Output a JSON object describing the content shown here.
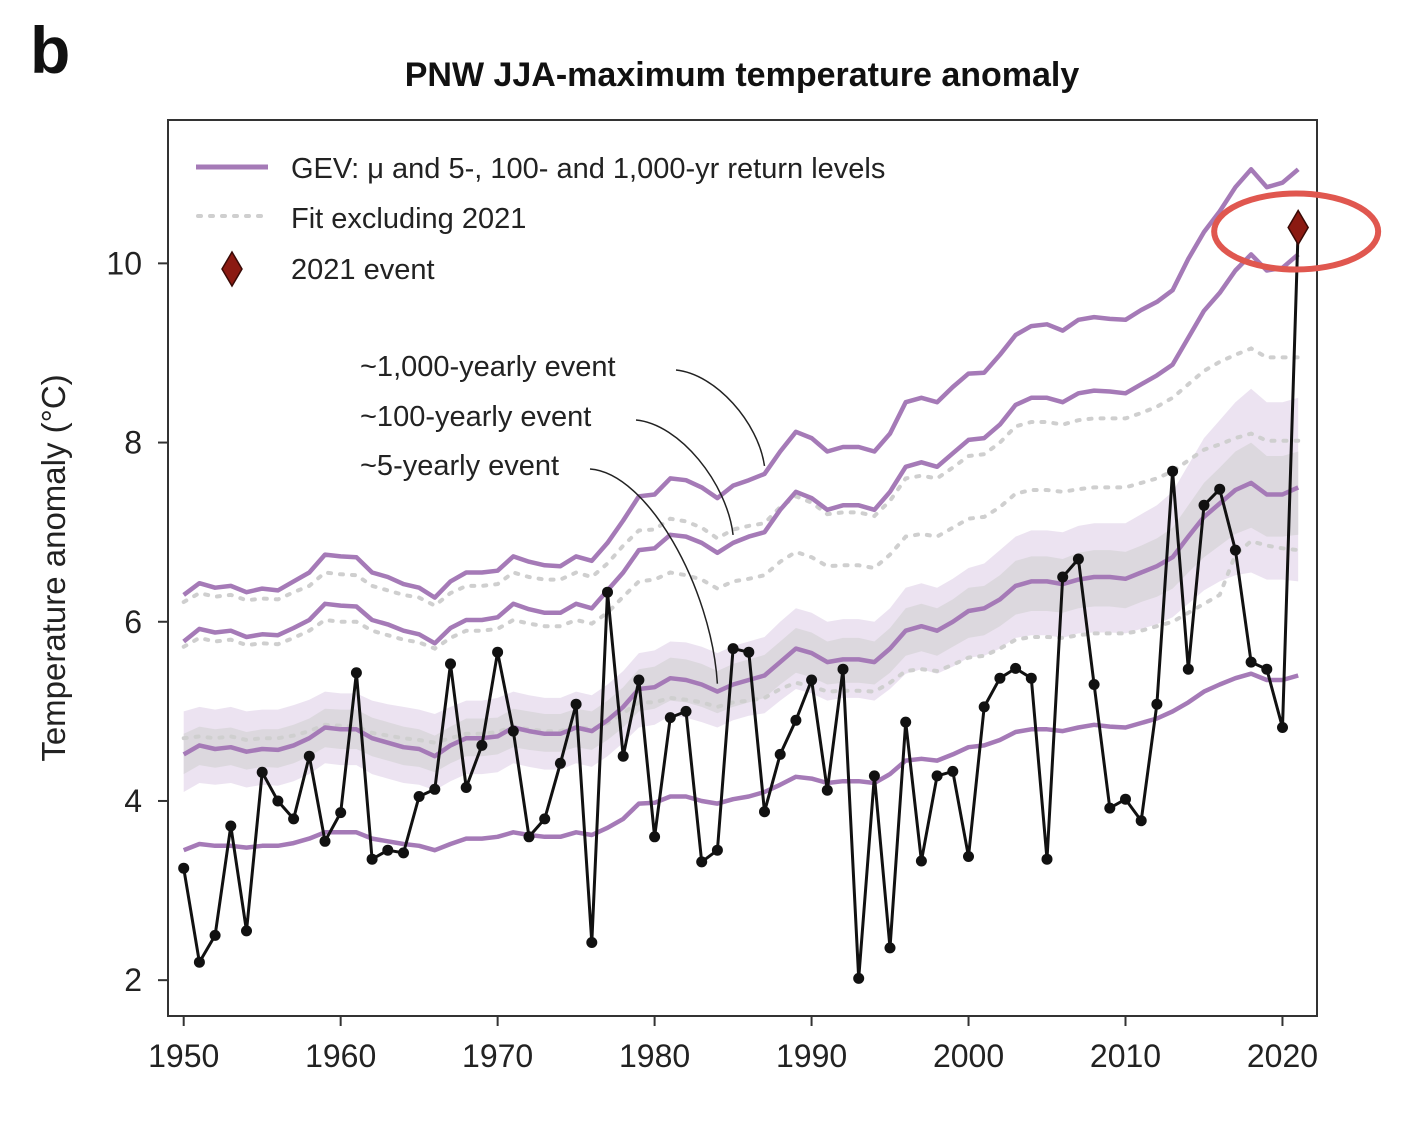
{
  "panel_label": "b",
  "colors": {
    "gev": "#a57ab7",
    "fit": "#cfcfcf",
    "obs": "#111111",
    "event": "#8b1a12",
    "highlight": "#e0574f",
    "band_purple": "#e6d9ec",
    "band_gray": "#d9d6db"
  },
  "chart_data": {
    "type": "line",
    "title": "PNW JJA-maximum temperature anomaly",
    "xlabel": "",
    "ylabel": "Temperature anomaly (°C)",
    "xlim": [
      1949,
      2022.2
    ],
    "ylim": [
      1.6,
      11.6
    ],
    "xticks": [
      1950,
      1960,
      1970,
      1980,
      1990,
      2000,
      2010,
      2020
    ],
    "yticks": [
      2,
      4,
      6,
      8,
      10
    ],
    "legend": {
      "position": "top-left",
      "entries": [
        {
          "label": "GEV: μ and 5-, 100- and 1,000-yr return levels",
          "style": "gev-line"
        },
        {
          "label": "Fit excluding 2021",
          "style": "dotted"
        },
        {
          "label": "2021 event",
          "style": "diamond"
        }
      ]
    },
    "annotations": [
      {
        "text": "~1,000-yearly event",
        "target_series": "GEV 1000-yr",
        "target_year": 1987
      },
      {
        "text": "~100-yearly event",
        "target_series": "GEV 100-yr",
        "target_year": 1985
      },
      {
        "text": "~5-yearly event",
        "target_series": "GEV 5-yr",
        "target_year": 1984
      }
    ],
    "years": [
      1950,
      1951,
      1952,
      1953,
      1954,
      1955,
      1956,
      1957,
      1958,
      1959,
      1960,
      1961,
      1962,
      1963,
      1964,
      1965,
      1966,
      1967,
      1968,
      1969,
      1970,
      1971,
      1972,
      1973,
      1974,
      1975,
      1976,
      1977,
      1978,
      1979,
      1980,
      1981,
      1982,
      1983,
      1984,
      1985,
      1986,
      1987,
      1988,
      1989,
      1990,
      1991,
      1992,
      1993,
      1994,
      1995,
      1996,
      1997,
      1998,
      1999,
      2000,
      2001,
      2002,
      2003,
      2004,
      2005,
      2006,
      2007,
      2008,
      2009,
      2010,
      2011,
      2012,
      2013,
      2014,
      2015,
      2016,
      2017,
      2018,
      2019,
      2020,
      2021
    ],
    "observed": {
      "name": "Observed",
      "values": [
        3.25,
        2.2,
        2.5,
        3.72,
        2.55,
        4.32,
        4.0,
        3.8,
        4.5,
        3.55,
        3.87,
        5.43,
        3.35,
        3.45,
        3.42,
        4.05,
        4.13,
        5.53,
        4.15,
        4.62,
        5.66,
        4.78,
        3.6,
        3.8,
        4.42,
        5.08,
        2.42,
        6.33,
        4.5,
        5.35,
        3.6,
        4.93,
        5.0,
        3.32,
        3.45,
        5.7,
        5.66,
        3.88,
        4.52,
        4.9,
        5.35,
        4.12,
        5.47,
        2.02,
        4.28,
        2.36,
        4.88,
        3.33,
        4.28,
        4.33,
        3.38,
        5.05,
        5.37,
        5.48,
        5.37,
        3.35,
        6.5,
        6.7,
        5.3,
        3.92,
        4.02,
        3.78,
        5.08,
        7.68,
        5.47,
        7.3,
        7.48,
        6.8,
        5.55,
        5.47,
        4.82
      ]
    },
    "event_2021": {
      "year": 2021,
      "value": 10.4
    },
    "gev_series": [
      {
        "name": "GEV 1000-yr",
        "values": [
          6.3,
          6.43,
          6.38,
          6.4,
          6.33,
          6.37,
          6.35,
          6.45,
          6.55,
          6.75,
          6.73,
          6.72,
          6.55,
          6.5,
          6.42,
          6.38,
          6.27,
          6.45,
          6.55,
          6.55,
          6.57,
          6.73,
          6.67,
          6.63,
          6.62,
          6.73,
          6.68,
          6.88,
          7.13,
          7.4,
          7.42,
          7.6,
          7.58,
          7.5,
          7.38,
          7.52,
          7.58,
          7.65,
          7.9,
          8.12,
          8.05,
          7.9,
          7.95,
          7.95,
          7.9,
          8.1,
          8.45,
          8.5,
          8.45,
          8.62,
          8.77,
          8.78,
          8.98,
          9.2,
          9.3,
          9.32,
          9.25,
          9.37,
          9.4,
          9.38,
          9.37,
          9.48,
          9.57,
          9.7,
          10.05,
          10.35,
          10.58,
          10.85,
          11.05,
          10.85,
          10.9,
          11.05
        ]
      },
      {
        "name": "GEV 100-yr",
        "values": [
          5.78,
          5.92,
          5.88,
          5.9,
          5.83,
          5.86,
          5.85,
          5.93,
          6.02,
          6.2,
          6.18,
          6.17,
          6.02,
          5.97,
          5.9,
          5.86,
          5.76,
          5.93,
          6.02,
          6.02,
          6.05,
          6.2,
          6.14,
          6.1,
          6.1,
          6.2,
          6.15,
          6.35,
          6.55,
          6.8,
          6.82,
          6.97,
          6.95,
          6.88,
          6.77,
          6.88,
          6.95,
          7.0,
          7.25,
          7.45,
          7.38,
          7.25,
          7.3,
          7.3,
          7.25,
          7.45,
          7.73,
          7.78,
          7.73,
          7.88,
          8.03,
          8.05,
          8.2,
          8.42,
          8.5,
          8.5,
          8.45,
          8.55,
          8.58,
          8.57,
          8.55,
          8.65,
          8.75,
          8.87,
          9.17,
          9.47,
          9.67,
          9.92,
          10.1,
          9.92,
          9.95,
          10.1
        ]
      },
      {
        "name": "GEV 5-yr",
        "values": [
          4.52,
          4.62,
          4.58,
          4.6,
          4.55,
          4.58,
          4.57,
          4.62,
          4.7,
          4.82,
          4.8,
          4.8,
          4.7,
          4.65,
          4.6,
          4.58,
          4.5,
          4.62,
          4.7,
          4.7,
          4.72,
          4.82,
          4.78,
          4.75,
          4.75,
          4.82,
          4.78,
          4.9,
          5.05,
          5.25,
          5.27,
          5.37,
          5.35,
          5.3,
          5.22,
          5.3,
          5.35,
          5.4,
          5.55,
          5.7,
          5.65,
          5.55,
          5.58,
          5.58,
          5.55,
          5.7,
          5.9,
          5.95,
          5.9,
          6.0,
          6.12,
          6.15,
          6.25,
          6.4,
          6.45,
          6.45,
          6.42,
          6.47,
          6.5,
          6.5,
          6.48,
          6.55,
          6.62,
          6.72,
          6.95,
          7.17,
          7.32,
          7.47,
          7.55,
          7.42,
          7.42,
          7.5
        ]
      },
      {
        "name": "GEV μ",
        "values": [
          3.45,
          3.52,
          3.5,
          3.5,
          3.48,
          3.5,
          3.5,
          3.53,
          3.58,
          3.65,
          3.65,
          3.65,
          3.58,
          3.55,
          3.52,
          3.5,
          3.45,
          3.52,
          3.58,
          3.58,
          3.6,
          3.65,
          3.62,
          3.6,
          3.6,
          3.65,
          3.62,
          3.7,
          3.8,
          3.97,
          3.98,
          4.05,
          4.05,
          4.0,
          3.97,
          4.02,
          4.05,
          4.1,
          4.18,
          4.27,
          4.25,
          4.2,
          4.22,
          4.22,
          4.2,
          4.3,
          4.45,
          4.47,
          4.45,
          4.52,
          4.6,
          4.62,
          4.68,
          4.77,
          4.8,
          4.8,
          4.78,
          4.82,
          4.85,
          4.83,
          4.82,
          4.87,
          4.92,
          5.0,
          5.1,
          5.22,
          5.3,
          5.37,
          5.42,
          5.35,
          5.35,
          5.4
        ]
      }
    ],
    "fit_excluding_2021": [
      {
        "name": "1000-yr excl. 2021",
        "values": [
          6.22,
          6.32,
          6.28,
          6.3,
          6.24,
          6.26,
          6.25,
          6.33,
          6.4,
          6.55,
          6.53,
          6.52,
          6.4,
          6.35,
          6.3,
          6.27,
          6.18,
          6.32,
          6.4,
          6.4,
          6.42,
          6.55,
          6.5,
          6.47,
          6.47,
          6.55,
          6.5,
          6.65,
          6.85,
          7.02,
          7.03,
          7.15,
          7.12,
          7.05,
          6.93,
          7.03,
          7.07,
          7.1,
          7.28,
          7.4,
          7.33,
          7.2,
          7.22,
          7.22,
          7.18,
          7.35,
          7.6,
          7.63,
          7.6,
          7.72,
          7.85,
          7.87,
          8.0,
          8.18,
          8.23,
          8.23,
          8.2,
          8.25,
          8.27,
          8.27,
          8.27,
          8.33,
          8.4,
          8.5,
          8.65,
          8.8,
          8.9,
          8.98,
          9.05,
          8.95,
          8.95,
          8.95
        ]
      },
      {
        "name": "100-yr excl. 2021",
        "values": [
          5.72,
          5.82,
          5.78,
          5.8,
          5.74,
          5.76,
          5.75,
          5.82,
          5.9,
          6.02,
          6.0,
          6.0,
          5.9,
          5.85,
          5.8,
          5.77,
          5.7,
          5.82,
          5.9,
          5.9,
          5.92,
          6.02,
          5.98,
          5.95,
          5.95,
          6.02,
          5.98,
          6.1,
          6.28,
          6.45,
          6.47,
          6.55,
          6.52,
          6.47,
          6.37,
          6.45,
          6.48,
          6.52,
          6.67,
          6.78,
          6.72,
          6.62,
          6.63,
          6.63,
          6.6,
          6.75,
          6.95,
          6.98,
          6.95,
          7.05,
          7.15,
          7.17,
          7.28,
          7.43,
          7.47,
          7.47,
          7.45,
          7.48,
          7.5,
          7.5,
          7.5,
          7.55,
          7.6,
          7.68,
          7.8,
          7.92,
          7.98,
          8.05,
          8.1,
          8.02,
          8.02,
          8.02
        ]
      },
      {
        "name": "5-yr excl. 2021",
        "values": [
          4.7,
          4.72,
          4.7,
          4.72,
          4.68,
          4.7,
          4.7,
          4.73,
          4.78,
          4.85,
          4.84,
          4.83,
          4.76,
          4.73,
          4.7,
          4.68,
          4.65,
          4.7,
          4.75,
          4.75,
          4.77,
          4.83,
          4.8,
          4.78,
          4.78,
          4.83,
          4.8,
          4.87,
          4.98,
          5.1,
          5.1,
          5.15,
          5.13,
          5.1,
          5.05,
          5.1,
          5.12,
          5.15,
          5.25,
          5.32,
          5.28,
          5.22,
          5.23,
          5.23,
          5.22,
          5.32,
          5.45,
          5.47,
          5.45,
          5.52,
          5.6,
          5.62,
          5.7,
          5.8,
          5.83,
          5.83,
          5.82,
          5.85,
          5.87,
          5.87,
          5.87,
          5.9,
          5.95,
          6.0,
          6.1,
          6.2,
          6.3,
          6.75,
          6.9,
          6.85,
          6.82,
          6.8
        ]
      }
    ],
    "uncertainty_band_5yr": {
      "outer_lower": [
        4.1,
        4.2,
        4.18,
        4.2,
        4.15,
        4.18,
        4.17,
        4.22,
        4.3,
        4.42,
        4.4,
        4.4,
        4.3,
        4.25,
        4.2,
        4.18,
        4.12,
        4.22,
        4.3,
        4.3,
        4.32,
        4.42,
        4.38,
        4.35,
        4.35,
        4.42,
        4.38,
        4.5,
        4.65,
        4.82,
        4.85,
        4.95,
        4.93,
        4.88,
        4.82,
        4.9,
        4.95,
        4.98,
        5.12,
        5.25,
        5.2,
        5.12,
        5.15,
        5.15,
        5.12,
        5.25,
        5.42,
        5.47,
        5.42,
        5.5,
        5.6,
        5.62,
        5.7,
        5.82,
        5.85,
        5.85,
        5.82,
        5.87,
        5.88,
        5.88,
        5.87,
        5.92,
        5.97,
        6.05,
        6.2,
        6.35,
        6.45,
        6.52,
        6.55,
        6.47,
        6.47,
        6.45
      ],
      "outer_upper": [
        5.0,
        5.05,
        5.02,
        5.05,
        5.0,
        5.02,
        5.02,
        5.07,
        5.13,
        5.22,
        5.2,
        5.2,
        5.12,
        5.08,
        5.05,
        5.02,
        4.97,
        5.05,
        5.12,
        5.12,
        5.15,
        5.22,
        5.18,
        5.15,
        5.15,
        5.22,
        5.18,
        5.3,
        5.45,
        5.65,
        5.68,
        5.78,
        5.77,
        5.72,
        5.65,
        5.73,
        5.78,
        5.83,
        6.0,
        6.15,
        6.1,
        6.0,
        6.03,
        6.03,
        6.0,
        6.15,
        6.38,
        6.43,
        6.38,
        6.48,
        6.6,
        6.65,
        6.8,
        6.95,
        7.02,
        7.02,
        7.0,
        7.07,
        7.1,
        7.1,
        7.1,
        7.2,
        7.3,
        7.45,
        7.75,
        8.05,
        8.25,
        8.45,
        8.6,
        8.45,
        8.45,
        8.5
      ],
      "inner_lower": [
        4.3,
        4.4,
        4.37,
        4.4,
        4.35,
        4.38,
        4.37,
        4.42,
        4.5,
        4.6,
        4.58,
        4.58,
        4.5,
        4.45,
        4.4,
        4.38,
        4.32,
        4.42,
        4.5,
        4.5,
        4.52,
        4.6,
        4.57,
        4.55,
        4.55,
        4.6,
        4.57,
        4.68,
        4.82,
        5.0,
        5.03,
        5.12,
        5.1,
        5.05,
        4.98,
        5.05,
        5.1,
        5.15,
        5.3,
        5.43,
        5.38,
        5.3,
        5.32,
        5.32,
        5.3,
        5.43,
        5.62,
        5.67,
        5.62,
        5.72,
        5.82,
        5.85,
        5.95,
        6.08,
        6.12,
        6.12,
        6.1,
        6.15,
        6.17,
        6.17,
        6.15,
        6.22,
        6.28,
        6.37,
        6.55,
        6.72,
        6.85,
        6.98,
        7.05,
        6.95,
        6.95,
        6.97
      ],
      "inner_upper": [
        4.75,
        4.83,
        4.8,
        4.82,
        4.77,
        4.8,
        4.8,
        4.85,
        4.92,
        5.03,
        5.02,
        5.02,
        4.93,
        4.88,
        4.83,
        4.8,
        4.73,
        4.83,
        4.92,
        4.92,
        4.93,
        5.03,
        5.0,
        4.97,
        4.97,
        5.03,
        5.0,
        5.12,
        5.27,
        5.47,
        5.5,
        5.6,
        5.58,
        5.53,
        5.45,
        5.53,
        5.58,
        5.63,
        5.78,
        5.93,
        5.88,
        5.78,
        5.82,
        5.82,
        5.78,
        5.93,
        6.15,
        6.2,
        6.15,
        6.25,
        6.38,
        6.4,
        6.52,
        6.68,
        6.73,
        6.73,
        6.7,
        6.77,
        6.8,
        6.8,
        6.78,
        6.85,
        6.93,
        7.05,
        7.3,
        7.55,
        7.72,
        7.9,
        8.0,
        7.85,
        7.85,
        7.9
      ]
    }
  }
}
